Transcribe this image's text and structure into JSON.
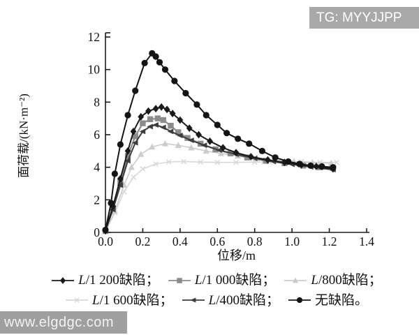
{
  "watermarks": {
    "top_right": "TG: MYYJJPP",
    "bottom_left": "www.elgdgc.com",
    "badge_color": "#a8a8a8",
    "text_color": "#ffffff"
  },
  "chart_data": {
    "type": "line",
    "title": "",
    "xlabel": "位移/m",
    "ylabel": "面荷载/(kN·m⁻²)",
    "xlim": [
      0,
      1.4
    ],
    "ylim": [
      0,
      12
    ],
    "x_ticks": [
      0.0,
      0.2,
      0.4,
      0.6,
      0.8,
      1.0,
      1.2,
      1.4
    ],
    "x_tick_labels": [
      "0.0",
      "0.2",
      "0.4",
      "0.6",
      "0.8",
      "1.0",
      "1.2",
      "1.4"
    ],
    "y_ticks": [
      0,
      2,
      4,
      6,
      8,
      10,
      12
    ],
    "y_tick_labels": [
      "0",
      "2",
      "4",
      "6",
      "8",
      "10",
      "12"
    ],
    "grid": false,
    "legend_position": "bottom",
    "axis_color": "#1a1a1a",
    "series": [
      {
        "label": "L/1 200缺陷；",
        "marker": "diamond",
        "color": "#1a1a1a",
        "line_width": 2,
        "points": [
          [
            0,
            0.1
          ],
          [
            0.04,
            1.6
          ],
          [
            0.08,
            3.3
          ],
          [
            0.12,
            5.0
          ],
          [
            0.15,
            6.2
          ],
          [
            0.19,
            7.1
          ],
          [
            0.23,
            7.45
          ],
          [
            0.27,
            7.6
          ],
          [
            0.3,
            7.7
          ],
          [
            0.33,
            7.55
          ],
          [
            0.36,
            7.3
          ],
          [
            0.4,
            6.9
          ],
          [
            0.45,
            6.4
          ],
          [
            0.5,
            6.0
          ],
          [
            0.56,
            5.6
          ],
          [
            0.63,
            5.2
          ],
          [
            0.7,
            4.9
          ],
          [
            0.78,
            4.65
          ],
          [
            0.87,
            4.45
          ],
          [
            0.96,
            4.3
          ],
          [
            1.05,
            4.15
          ],
          [
            1.13,
            4.05
          ],
          [
            1.22,
            3.9
          ]
        ]
      },
      {
        "label": "L/1 000缺陷；",
        "marker": "square",
        "color": "#8c8c8c",
        "line_width": 2.2,
        "points": [
          [
            0,
            0.1
          ],
          [
            0.04,
            1.5
          ],
          [
            0.08,
            3.1
          ],
          [
            0.12,
            4.7
          ],
          [
            0.16,
            5.9
          ],
          [
            0.2,
            6.7
          ],
          [
            0.24,
            6.95
          ],
          [
            0.28,
            7.0
          ],
          [
            0.31,
            6.9
          ],
          [
            0.35,
            6.55
          ],
          [
            0.39,
            6.15
          ],
          [
            0.44,
            5.8
          ],
          [
            0.51,
            5.45
          ],
          [
            0.59,
            5.1
          ],
          [
            0.67,
            4.85
          ],
          [
            0.76,
            4.6
          ],
          [
            0.86,
            4.4
          ],
          [
            0.96,
            4.25
          ],
          [
            1.06,
            4.1
          ],
          [
            1.15,
            4.0
          ],
          [
            1.22,
            3.95
          ]
        ]
      },
      {
        "label": "L/800缺陷；",
        "marker": "triangle-up",
        "color": "#cccccc",
        "line_width": 1.6,
        "points": [
          [
            0,
            0.05
          ],
          [
            0.05,
            1.3
          ],
          [
            0.1,
            2.9
          ],
          [
            0.14,
            4.0
          ],
          [
            0.19,
            4.8
          ],
          [
            0.25,
            5.25
          ],
          [
            0.32,
            5.45
          ],
          [
            0.39,
            5.35
          ],
          [
            0.46,
            5.2
          ],
          [
            0.54,
            5.0
          ],
          [
            0.62,
            4.85
          ],
          [
            0.71,
            4.7
          ],
          [
            0.81,
            4.55
          ],
          [
            0.91,
            4.45
          ],
          [
            1.01,
            4.35
          ],
          [
            1.11,
            4.28
          ],
          [
            1.21,
            4.25
          ]
        ]
      },
      {
        "label": "L/1 600缺陷；",
        "marker": "x",
        "color": "#d8d8d8",
        "line_width": 1.6,
        "points": [
          [
            0,
            0.05
          ],
          [
            0.05,
            1.2
          ],
          [
            0.1,
            2.5
          ],
          [
            0.15,
            3.4
          ],
          [
            0.2,
            3.9
          ],
          [
            0.27,
            4.2
          ],
          [
            0.34,
            4.33
          ],
          [
            0.42,
            4.35
          ],
          [
            0.51,
            4.32
          ],
          [
            0.6,
            4.3
          ],
          [
            0.7,
            4.3
          ],
          [
            0.8,
            4.32
          ],
          [
            0.85,
            4.33
          ],
          [
            0.88,
            4.33
          ],
          [
            0.95,
            4.35
          ],
          [
            1.05,
            4.35
          ],
          [
            1.15,
            4.3
          ],
          [
            1.24,
            4.3
          ]
        ]
      },
      {
        "label": "L/400缺陷；",
        "marker": "triangle-left",
        "color": "#3d3d3d",
        "line_width": 2,
        "points": [
          [
            0,
            0.1
          ],
          [
            0.04,
            1.4
          ],
          [
            0.08,
            2.9
          ],
          [
            0.12,
            4.4
          ],
          [
            0.16,
            5.5
          ],
          [
            0.2,
            6.2
          ],
          [
            0.24,
            6.5
          ],
          [
            0.27,
            6.6
          ],
          [
            0.31,
            6.45
          ],
          [
            0.35,
            6.2
          ],
          [
            0.4,
            5.95
          ],
          [
            0.46,
            5.65
          ],
          [
            0.53,
            5.35
          ],
          [
            0.61,
            5.05
          ],
          [
            0.7,
            4.8
          ],
          [
            0.8,
            4.55
          ],
          [
            0.9,
            4.35
          ],
          [
            1.0,
            4.18
          ],
          [
            1.1,
            4.02
          ],
          [
            1.22,
            3.85
          ]
        ]
      },
      {
        "label": "无缺陷。",
        "marker": "circle",
        "color": "#141414",
        "line_width": 2,
        "points": [
          [
            0,
            0.15
          ],
          [
            0.03,
            1.8
          ],
          [
            0.05,
            3.6
          ],
          [
            0.08,
            5.4
          ],
          [
            0.12,
            7.2
          ],
          [
            0.16,
            8.7
          ],
          [
            0.21,
            10.4
          ],
          [
            0.25,
            11.0
          ],
          [
            0.27,
            10.8
          ],
          [
            0.29,
            10.45
          ],
          [
            0.32,
            10.0
          ],
          [
            0.37,
            9.3
          ],
          [
            0.43,
            8.55
          ],
          [
            0.49,
            7.85
          ],
          [
            0.54,
            7.2
          ],
          [
            0.6,
            6.6
          ],
          [
            0.65,
            6.1
          ],
          [
            0.71,
            5.75
          ],
          [
            0.77,
            5.45
          ],
          [
            0.84,
            5.0
          ],
          [
            0.91,
            4.6
          ],
          [
            0.98,
            4.35
          ],
          [
            1.04,
            4.2
          ],
          [
            1.1,
            4.1
          ],
          [
            1.16,
            4.05
          ],
          [
            1.22,
            4.0
          ]
        ]
      }
    ],
    "draw_order": [
      3,
      2,
      1,
      4,
      0,
      5
    ],
    "legend_rows": [
      [
        0,
        1,
        2
      ],
      [
        3,
        4,
        5
      ]
    ]
  }
}
